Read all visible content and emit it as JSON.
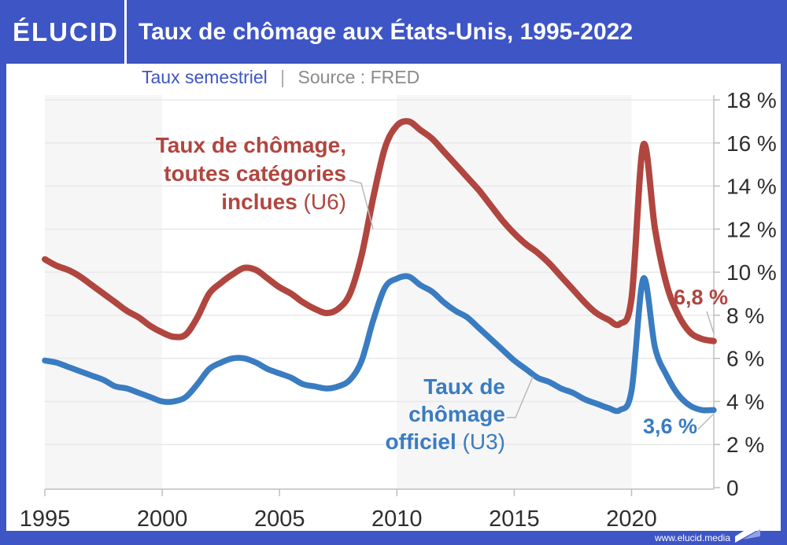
{
  "brand": {
    "logo": "ÉLUCID",
    "website": "www.elucid.media"
  },
  "header": {
    "title": "Taux de chômage aux États-Unis, 1995-2022"
  },
  "subtitle": {
    "frequency": "Taux semestriel",
    "separator": "|",
    "source": "Source : FRED"
  },
  "colors": {
    "brand_blue": "#3e55c5",
    "u6_red": "#b0463f",
    "u3_blue": "#3a7cc1",
    "band_gray": "#f6f6f7",
    "grid": "#e8e8ea",
    "axis": "#bfbfbf",
    "tick_text": "#2e2e2e"
  },
  "annotations": {
    "u6": {
      "line1": "Taux de chômage,",
      "line2": "toutes catégories",
      "line3_bold": "inclues",
      "line3_rest": " (U6)"
    },
    "u3": {
      "line1": "Taux de",
      "line2": "chômage",
      "line3_bold": "officiel",
      "line3_rest": " (U3)"
    }
  },
  "chart_data": {
    "type": "line",
    "title": "Taux de chômage aux États-Unis, 1995-2022",
    "subtitle": "Taux semestriel",
    "source": "FRED",
    "xlim": [
      1995,
      2023.5
    ],
    "ylim": [
      0,
      18
    ],
    "grid": true,
    "x_start": 1995,
    "x_step": 0.5,
    "x_ticks": [
      {
        "v": 1995,
        "label": "1995"
      },
      {
        "v": 2000,
        "label": "2000"
      },
      {
        "v": 2005,
        "label": "2005"
      },
      {
        "v": 2010,
        "label": "2010"
      },
      {
        "v": 2015,
        "label": "2015"
      },
      {
        "v": 2020,
        "label": "2020"
      }
    ],
    "y_ticks": [
      {
        "v": 18,
        "label": "18 %"
      },
      {
        "v": 16,
        "label": "16 %"
      },
      {
        "v": 14,
        "label": "14 %"
      },
      {
        "v": 12,
        "label": "12 %"
      },
      {
        "v": 10,
        "label": "10 %"
      },
      {
        "v": 8,
        "label": "8 %"
      },
      {
        "v": 6,
        "label": "6 %"
      },
      {
        "v": 4,
        "label": "4 %"
      },
      {
        "v": 2,
        "label": "2 %"
      },
      {
        "v": 0,
        "label": "0"
      }
    ],
    "background_bands": [
      [
        1995,
        2000
      ],
      [
        2010,
        2020
      ]
    ],
    "series": [
      {
        "name": "Taux de chômage, toutes catégories inclues (U6)",
        "color": "#b0463f",
        "end_label": "6,8 %",
        "end_value": 6.8,
        "values": [
          10.6,
          10.3,
          10.1,
          9.8,
          9.4,
          9.0,
          8.6,
          8.2,
          7.9,
          7.5,
          7.2,
          7.0,
          7.1,
          7.9,
          9.0,
          9.5,
          9.9,
          10.2,
          10.1,
          9.7,
          9.3,
          9.0,
          8.6,
          8.3,
          8.1,
          8.3,
          9.0,
          10.8,
          13.5,
          15.8,
          16.8,
          17.0,
          16.6,
          16.2,
          15.6,
          15.0,
          14.4,
          13.8,
          13.1,
          12.4,
          11.8,
          11.3,
          10.9,
          10.4,
          9.8,
          9.2,
          8.6,
          8.1,
          7.8,
          7.6,
          8.8,
          15.9,
          12.0,
          9.4,
          8.0,
          7.2,
          6.9,
          6.8
        ]
      },
      {
        "name": "Taux de chômage officiel (U3)",
        "color": "#3a7cc1",
        "end_label": "3,6 %",
        "end_value": 3.6,
        "values": [
          5.9,
          5.8,
          5.6,
          5.4,
          5.2,
          5.0,
          4.7,
          4.6,
          4.4,
          4.2,
          4.0,
          4.0,
          4.2,
          4.8,
          5.5,
          5.8,
          6.0,
          6.0,
          5.8,
          5.5,
          5.3,
          5.1,
          4.8,
          4.7,
          4.6,
          4.7,
          5.0,
          5.9,
          7.8,
          9.3,
          9.7,
          9.8,
          9.4,
          9.1,
          8.6,
          8.2,
          7.9,
          7.4,
          6.9,
          6.4,
          5.9,
          5.5,
          5.1,
          4.9,
          4.6,
          4.4,
          4.1,
          3.9,
          3.7,
          3.6,
          4.5,
          9.7,
          6.5,
          5.2,
          4.3,
          3.8,
          3.6,
          3.6
        ]
      }
    ]
  }
}
